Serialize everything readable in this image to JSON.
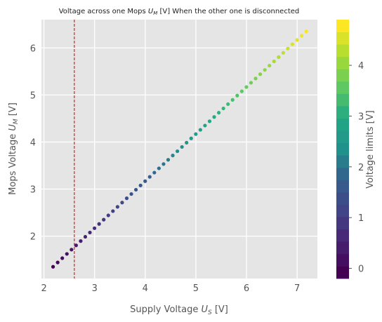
{
  "chart_data": {
    "type": "scatter",
    "title_prefix": "Voltage across one Mops ",
    "title_var": "U",
    "title_sub": "M",
    "title_suffix": " [V] When the other one is disconnected",
    "xlabel_prefix": "Supply Voltage ",
    "xlabel_var": "U",
    "xlabel_sub": "S",
    "xlabel_suffix": " [V]",
    "ylabel_prefix": "Mops Voltage ",
    "ylabel_var": "U",
    "ylabel_sub": "M",
    "ylabel_suffix": " [V]",
    "colorbar_label": "Voltage limits [V]",
    "xlim": [
      1.95,
      7.4
    ],
    "ylim": [
      1.1,
      6.6
    ],
    "xticks": [
      2,
      3,
      4,
      5,
      6,
      7
    ],
    "yticks": [
      2,
      3,
      4,
      5,
      6
    ],
    "colorbar_range": [
      -0.2,
      4.9
    ],
    "colorbar_ticks": [
      0,
      1,
      2,
      3,
      4
    ],
    "colorbar_levels": 21,
    "reference_line_x": 2.6,
    "reference_line_color": "#cc0000",
    "grid": true,
    "background": "#e5e5e5",
    "series": [
      {
        "x_start": 2.18,
        "x_end": 7.18,
        "x_step": 0.0909,
        "y_start": 1.35,
        "y_end": 6.35,
        "color_by": "y"
      }
    ]
  }
}
